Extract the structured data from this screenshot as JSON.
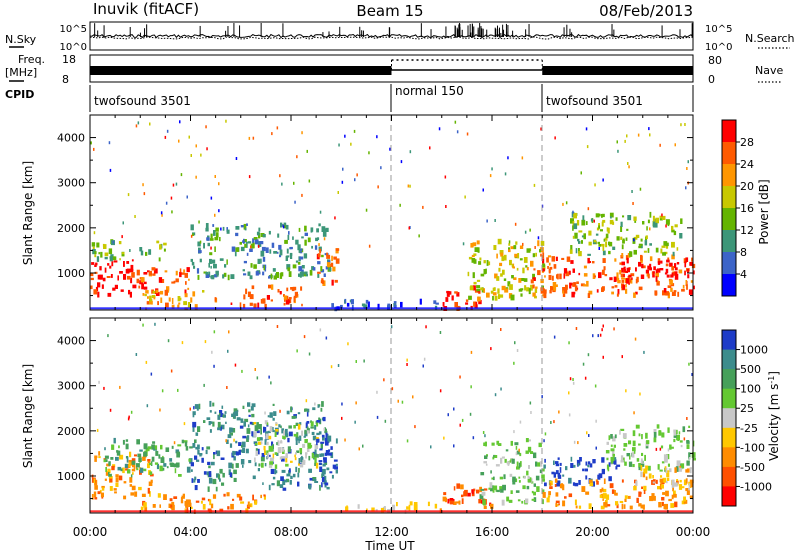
{
  "header": {
    "station": "Inuvik (fitACF)",
    "beam": "Beam 15",
    "date": "08/Feb/2013"
  },
  "time_axis": {
    "label": "Time UT",
    "ticks": [
      "00:00",
      "04:00",
      "08:00",
      "12:00",
      "16:00",
      "20:00",
      "00:00"
    ],
    "range_hours": [
      0,
      24
    ]
  },
  "status_panels": {
    "nsky_label": "N.Sky",
    "nsky_ticks": [
      "10^5",
      "10^0"
    ],
    "nsearch_label": "N.Search",
    "nsearch_ticks": [
      "10^5",
      "10^0"
    ],
    "freq_label_line1": "Freq.",
    "freq_label_line2": "[MHz]",
    "freq_ticks": [
      "18",
      "8"
    ],
    "freq_range": [
      8,
      18
    ],
    "nave_label": "Nave",
    "nave_ticks": [
      "80",
      "0"
    ],
    "nave_range": [
      0,
      80
    ],
    "cpid_label": "CPID",
    "cpid_segments": [
      {
        "name": "twofsound 3501",
        "start_hour": 0,
        "end_hour": 12
      },
      {
        "name": "normal 150",
        "start_hour": 12,
        "end_hour": 18
      },
      {
        "name": "twofsound 3501",
        "start_hour": 18,
        "end_hour": 24
      }
    ]
  },
  "chart_data": [
    {
      "type": "heatmap",
      "parameter": "power",
      "ylabel": "Slant Range [km]",
      "xlabel": "",
      "ylim": [
        180,
        4500
      ],
      "yticks": [
        1000,
        2000,
        3000,
        4000
      ],
      "colorbar_label": "Power [dB]",
      "colorbar_ticks": [
        "28",
        "24",
        "20",
        "16",
        "12",
        "8",
        "4"
      ],
      "colorbar_colors": [
        "#ff0000",
        "#ff5a00",
        "#ff9600",
        "#c8c800",
        "#64b400",
        "#3c9678",
        "#3c64c8",
        "#0000ff"
      ],
      "regions": [
        {
          "t0": 0.0,
          "t1": 2.0,
          "r0": 500,
          "r1": 1300,
          "level": 0
        },
        {
          "t0": 2.0,
          "t1": 4.0,
          "r0": 500,
          "r1": 1100,
          "level": 1
        },
        {
          "t0": 0.0,
          "t1": 3.0,
          "r0": 1300,
          "r1": 1700,
          "level": 4
        },
        {
          "t0": 2.0,
          "t1": 5.0,
          "r0": 200,
          "r1": 600,
          "level": 2
        },
        {
          "t0": 4.0,
          "t1": 9.5,
          "r0": 900,
          "r1": 2100,
          "level": 5
        },
        {
          "t0": 5.5,
          "t1": 8.5,
          "r0": 250,
          "r1": 700,
          "level": 1
        },
        {
          "t0": 9.0,
          "t1": 9.8,
          "r0": 700,
          "r1": 1600,
          "level": 1
        },
        {
          "t0": 9.5,
          "t1": 14.0,
          "r0": 200,
          "r1": 400,
          "level": 6
        },
        {
          "t0": 14.0,
          "t1": 15.5,
          "r0": 200,
          "r1": 700,
          "level": 0
        },
        {
          "t0": 15.0,
          "t1": 18.0,
          "r0": 400,
          "r1": 1700,
          "level": 3
        },
        {
          "t0": 17.5,
          "t1": 24.0,
          "r0": 500,
          "r1": 1400,
          "level": 1
        },
        {
          "t0": 19.0,
          "t1": 23.5,
          "r0": 1400,
          "r1": 2300,
          "level": 4
        },
        {
          "t0": 21.0,
          "t1": 24.0,
          "r0": 800,
          "r1": 1300,
          "level": 0
        }
      ]
    },
    {
      "type": "heatmap",
      "parameter": "velocity",
      "ylabel": "Slant Range [km]",
      "xlabel": "Time UT",
      "ylim": [
        180,
        4500
      ],
      "yticks": [
        1000,
        2000,
        3000,
        4000
      ],
      "colorbar_label": "Velocity [m s^-1]",
      "colorbar_ticks": [
        "1000",
        "500",
        "100",
        "25",
        "-25",
        "-100",
        "-500",
        "-1000"
      ],
      "colorbar_colors": [
        "#1e3cc8",
        "#3c8c8c",
        "#46a05a",
        "#64c832",
        "#c8c8c8",
        "#ffc800",
        "#ff8c00",
        "#ff5000",
        "#ff0000"
      ],
      "regions": [
        {
          "t0": 0.0,
          "t1": 2.5,
          "r0": 500,
          "r1": 1500,
          "level": 6
        },
        {
          "t0": 0.5,
          "t1": 4.0,
          "r0": 1000,
          "r1": 1800,
          "level": 2
        },
        {
          "t0": 4.0,
          "t1": 9.5,
          "r0": 700,
          "r1": 2600,
          "level": 1
        },
        {
          "t0": 2.0,
          "t1": 7.0,
          "r0": 200,
          "r1": 600,
          "level": 6
        },
        {
          "t0": 6.5,
          "t1": 9.0,
          "r0": 1200,
          "r1": 2200,
          "level": 4
        },
        {
          "t0": 9.0,
          "t1": 9.8,
          "r0": 800,
          "r1": 1900,
          "level": 0
        },
        {
          "t0": 10.0,
          "t1": 14.0,
          "r0": 200,
          "r1": 400,
          "level": 5
        },
        {
          "t0": 14.0,
          "t1": 16.0,
          "r0": 250,
          "r1": 800,
          "level": 7
        },
        {
          "t0": 15.5,
          "t1": 18.0,
          "r0": 400,
          "r1": 1800,
          "level": 3
        },
        {
          "t0": 18.0,
          "t1": 21.0,
          "r0": 800,
          "r1": 1400,
          "level": 0
        },
        {
          "t0": 18.0,
          "t1": 24.0,
          "r0": 300,
          "r1": 900,
          "level": 6
        },
        {
          "t0": 20.5,
          "t1": 24.0,
          "r0": 1100,
          "r1": 2100,
          "level": 3
        },
        {
          "t0": 21.5,
          "t1": 24.0,
          "r0": 700,
          "r1": 1200,
          "level": 5
        }
      ]
    }
  ]
}
